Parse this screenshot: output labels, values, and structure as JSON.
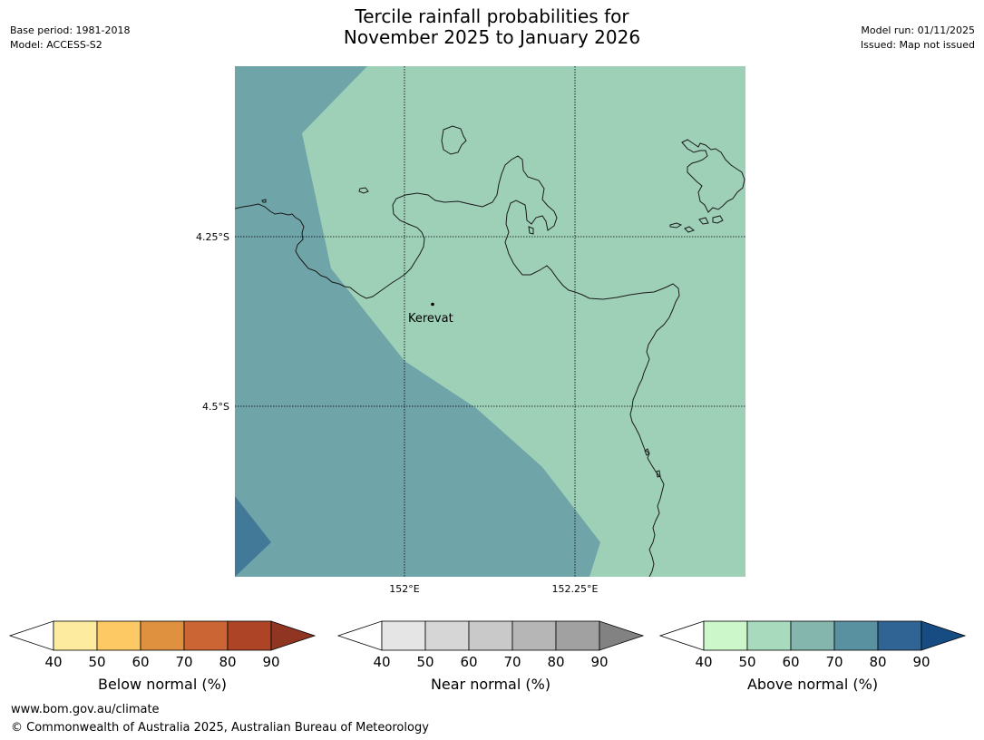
{
  "header": {
    "base_period": "Base period: 1981-2018",
    "model": "Model: ACCESS-S2",
    "title_line1": "Tercile rainfall probabilities for",
    "title_line2": "November 2025 to January 2026",
    "model_run": "Model run: 01/11/2025",
    "issued": "Issued: Map not issued"
  },
  "map": {
    "lat_labels": [
      "4.25°S",
      "4.5°S"
    ],
    "lon_labels": [
      "152°E",
      "152.25°E"
    ],
    "place": "Kerevat",
    "colors": {
      "above_40_50": "#cbf7cb",
      "above_50_60": "#9ed0b8",
      "above_60_70": "#6fa4a8",
      "above_70_80": "#427998",
      "coast": "#1a1a1a"
    }
  },
  "legends": [
    {
      "label": "Below normal (%)",
      "ticks": [
        "40",
        "50",
        "60",
        "70",
        "80",
        "90"
      ],
      "colors": [
        "#fdeca0",
        "#fdc965",
        "#e0913f",
        "#cc6534",
        "#ad4425",
        "#8f3522"
      ]
    },
    {
      "label": "Near normal (%)",
      "ticks": [
        "40",
        "50",
        "60",
        "70",
        "80",
        "90"
      ],
      "colors": [
        "#e5e5e5",
        "#d6d6d6",
        "#c9c9c9",
        "#b6b6b6",
        "#a1a1a1",
        "#828282"
      ]
    },
    {
      "label": "Above normal (%)",
      "ticks": [
        "40",
        "50",
        "60",
        "70",
        "80",
        "90"
      ],
      "colors": [
        "#cbf7cb",
        "#a8dbbd",
        "#84b6ae",
        "#5a91a0",
        "#2f6495",
        "#164c82"
      ]
    }
  ],
  "footer": {
    "url": "www.bom.gov.au/climate",
    "copyright": "© Commonwealth of Australia 2025, Australian Bureau of Meteorology"
  }
}
